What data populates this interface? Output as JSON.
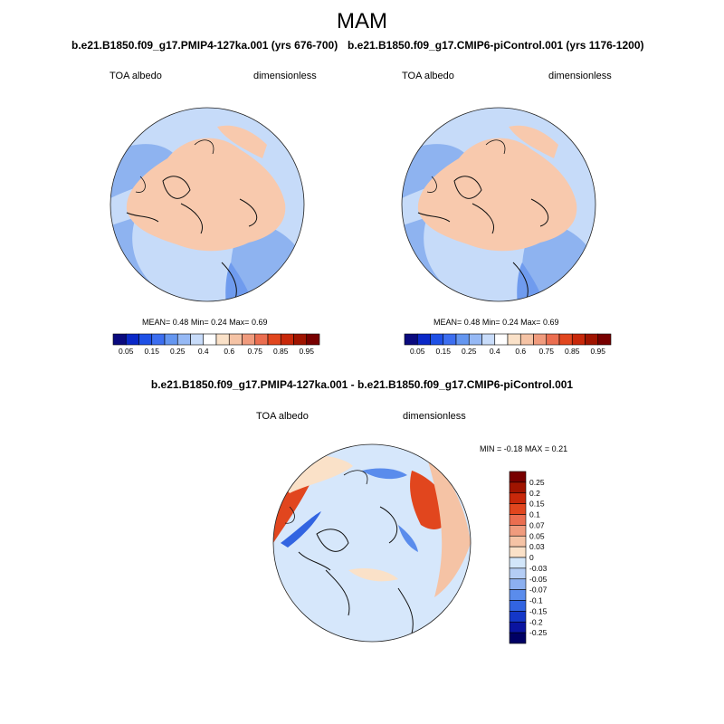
{
  "figure": {
    "title": "MAM"
  },
  "panels": [
    {
      "title": "b.e21.B1850.f09_g17.PMIP4-127ka.001 (yrs 676-700)",
      "left_label": "TOA albedo",
      "right_label": "dimensionless",
      "stats": {
        "mean_label": "MEAN=",
        "mean": "0.48",
        "min_label": "Min=",
        "min": "0.24",
        "max_label": "Max=",
        "max": "0.69"
      }
    },
    {
      "title": "b.e21.B1850.f09_g17.CMIP6-piControl.001 (yrs 1176-1200)",
      "left_label": "TOA albedo",
      "right_label": "dimensionless",
      "stats": {
        "mean_label": "MEAN=",
        "mean": "0.48",
        "min_label": "Min=",
        "min": "0.24",
        "max_label": "Max=",
        "max": "0.69"
      }
    },
    {
      "title": "b.e21.B1850.f09_g17.PMIP4-127ka.001 - b.e21.B1850.f09_g17.CMIP6-piControl.001",
      "left_label": "TOA albedo",
      "right_label": "dimensionless",
      "stats": {
        "min_label": "MIN =",
        "min": "-0.18",
        "max_label": "MAX =",
        "max": "0.21"
      }
    }
  ],
  "colorbar_abs": {
    "ticks": [
      "0.05",
      "0.15",
      "0.25",
      "0.4",
      "0.6",
      "0.75",
      "0.85",
      "0.95"
    ],
    "colors": [
      "#0a0a7e",
      "#0a28c8",
      "#1e50e6",
      "#3c6ef0",
      "#6496f0",
      "#96b9f5",
      "#c8dcfa",
      "#ffffff",
      "#fae1c8",
      "#f5c3a5",
      "#f09b7d",
      "#eb6e50",
      "#e1461e",
      "#c8280a",
      "#a01400",
      "#780000"
    ]
  },
  "colorbar_diff": {
    "ticks": [
      "0.25",
      "0.2",
      "0.15",
      "0.1",
      "0.07",
      "0.05",
      "0.03",
      "0",
      "-0.03",
      "-0.05",
      "-0.07",
      "-0.1",
      "-0.15",
      "-0.2",
      "-0.25"
    ],
    "colors": [
      "#780000",
      "#a01400",
      "#c8280a",
      "#e1461e",
      "#eb6e50",
      "#f09b7d",
      "#f5c3a5",
      "#fae1c8",
      "#d2e6fa",
      "#b4cdf5",
      "#8cb0f0",
      "#5a8cec",
      "#3264e1",
      "#1437c8",
      "#0a14a0",
      "#000064"
    ]
  },
  "colors": {
    "arctic_ice": "#f8c9ad",
    "land_mid": "#c6dbf9",
    "ocean_low": "#8eb3f0",
    "ocean_lower": "#6f9bee",
    "diff_neutral": "#d6e7fb"
  }
}
